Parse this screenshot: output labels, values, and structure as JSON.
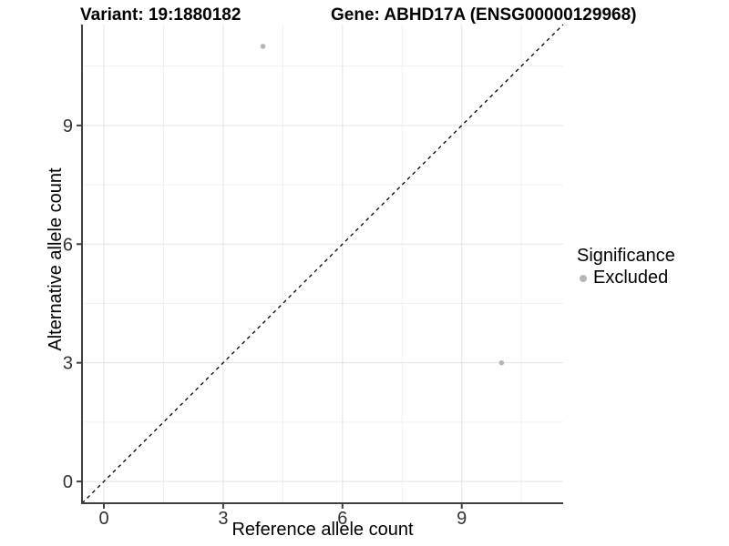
{
  "header": {
    "variant_title": "Variant: 19:1880182",
    "gene_title": "Gene: ABHD17A (ENSG00000129968)"
  },
  "legend": {
    "title": "Significance",
    "entries": [
      {
        "label": "Excluded",
        "color": "#b5b5b5"
      }
    ]
  },
  "chart_data": {
    "type": "scatter",
    "title": "Variant: 19:1880182        Gene: ABHD17A (ENSG00000129968)",
    "xlabel": "Reference allele count",
    "ylabel": "Alternative allele count",
    "xlim": [
      -0.55,
      11.55
    ],
    "ylim": [
      -0.55,
      11.55
    ],
    "xticks": [
      0,
      3,
      6,
      9
    ],
    "yticks": [
      0,
      3,
      6,
      9
    ],
    "minor_gridlines_x": [
      1.5,
      4.5,
      7.5,
      10.5
    ],
    "minor_gridlines_y": [
      1.5,
      4.5,
      7.5,
      10.5
    ],
    "grid": true,
    "legend_position": "right",
    "legend_title": "Significance",
    "reference_line": {
      "type": "identity",
      "equation": "y = x",
      "style": "dashed",
      "color": "#000000"
    },
    "series": [
      {
        "name": "Excluded",
        "significance": "Excluded",
        "color": "#b5b5b5",
        "points": [
          {
            "x": 4,
            "y": 11
          },
          {
            "x": 10,
            "y": 3
          }
        ]
      }
    ],
    "colors": {
      "background": "#ffffff",
      "grid_major": "#e3e3e3",
      "grid_minor": "#f0f0f0",
      "axis_line": "#404040",
      "tick_label": "#333333",
      "excluded_point": "#b5b5b5"
    }
  }
}
